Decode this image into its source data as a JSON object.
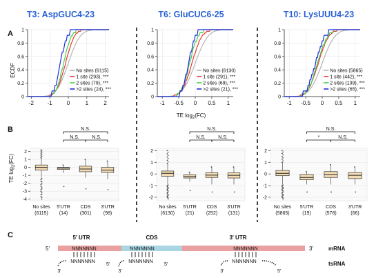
{
  "figure": {
    "panel_labels": {
      "a": "A",
      "b": "B",
      "c": "C"
    },
    "shared_labels": {
      "ecdf_ylabel": "ECDF",
      "te_ylabel_main": "TE log",
      "te_ylabel_sub": "2",
      "te_ylabel_tail": "(FC)",
      "xlabel_main": "TE log",
      "xlabel_sub": "2",
      "xlabel_tail": "(FC)"
    },
    "significance": {
      "ns": "N.S.",
      "star": "*"
    },
    "diagram": {
      "five_prime": "5'",
      "three_prime": "3'",
      "region_5utr": "5' UTR",
      "region_cds": "CDS",
      "region_3utr": "3' UTR",
      "seq_top": "NNNNNNN",
      "seq_bottom": "NNNNNNN",
      "mrna_label": "mRNA",
      "trna_label": "tsRNA"
    }
  },
  "chart_data": [
    {
      "type": "line",
      "subtype": "ecdf",
      "title": "T3: AspGUC4-23",
      "ylabel": "ECDF",
      "xlabel": "TE log2(FC)",
      "xlim": [
        -2.2,
        2.2
      ],
      "ylim": [
        0,
        1
      ],
      "xticks": [
        -2,
        -1,
        0,
        1,
        2
      ],
      "yticks": [
        0,
        0.2,
        0.4,
        0.6,
        0.8,
        1
      ],
      "legend": "bottom-right",
      "series": [
        {
          "name": "No sites (6115)",
          "color": "#b5b5b5",
          "mu": 0.0,
          "sd": 0.5
        },
        {
          "name": "1 site (293), ***",
          "color": "#e53935",
          "mu": -0.15,
          "sd": 0.38
        },
        {
          "name": "2 sites (79), ***",
          "color": "#43d143",
          "mu": -0.25,
          "sd": 0.33
        },
        {
          "name": ">2 sites (24), ***",
          "color": "#1e2be0",
          "mu": -0.42,
          "sd": 0.28
        }
      ]
    },
    {
      "type": "line",
      "subtype": "ecdf",
      "title": "T6: GluCUC6-25",
      "ylabel": "",
      "xlabel": "TE log2(FC)",
      "xlim": [
        -1.15,
        1.15
      ],
      "ylim": [
        0,
        1
      ],
      "xticks": [
        -1,
        -0.5,
        0,
        0.5,
        1
      ],
      "yticks": [
        0,
        0.2,
        0.4,
        0.6,
        0.8,
        1
      ],
      "legend": "bottom-right",
      "series": [
        {
          "name": "No sites (6130)",
          "color": "#b5b5b5",
          "mu": 0.0,
          "sd": 0.3
        },
        {
          "name": "1 site (291), ***",
          "color": "#e53935",
          "mu": -0.1,
          "sd": 0.24
        },
        {
          "name": "2 sites (69), ***",
          "color": "#43d143",
          "mu": -0.17,
          "sd": 0.2
        },
        {
          "name": ">2 sites (21), ***",
          "color": "#1e2be0",
          "mu": -0.2,
          "sd": 0.16
        }
      ]
    },
    {
      "type": "line",
      "subtype": "ecdf",
      "title": "T10: LysUUU4-23",
      "ylabel": "",
      "xlabel": "",
      "xlim": [
        -1.15,
        1.15
      ],
      "ylim": [
        0,
        1
      ],
      "xticks": [
        -1,
        -0.5,
        0,
        0.5,
        1
      ],
      "yticks": [
        0,
        0.2,
        0.4,
        0.6,
        0.8,
        1
      ],
      "legend": "bottom-right",
      "series": [
        {
          "name": "No sites (5865)",
          "color": "#b5b5b5",
          "mu": 0.0,
          "sd": 0.3
        },
        {
          "name": "1 site (442), ***",
          "color": "#e53935",
          "mu": -0.12,
          "sd": 0.25
        },
        {
          "name": "2 sites (139), ***",
          "color": "#43d143",
          "mu": -0.14,
          "sd": 0.24
        },
        {
          "name": ">2 sites (65), ***",
          "color": "#1e2be0",
          "mu": -0.2,
          "sd": 0.22
        }
      ]
    },
    {
      "type": "box",
      "ylabel": "TE log2(FC)",
      "ylim": [
        -4.2,
        2.4
      ],
      "yticks": [
        -4,
        -3,
        -2,
        -1,
        0,
        1,
        2
      ],
      "categories": [
        "No sites",
        "5'UTR",
        "CDS",
        "3'UTR"
      ],
      "counts": [
        "(6115)",
        "(14)",
        "(301)",
        "(98)"
      ],
      "boxes": [
        {
          "q1": -0.35,
          "med": 0.0,
          "q3": 0.3,
          "lo": -1.3,
          "hi": 1.2
        },
        {
          "q1": -0.25,
          "med": -0.1,
          "q3": 0.0,
          "lo": -0.7,
          "hi": 0.3
        },
        {
          "q1": -0.55,
          "med": -0.2,
          "q3": 0.15,
          "lo": -1.3,
          "hi": 1.0
        },
        {
          "q1": -0.65,
          "med": -0.35,
          "q3": 0.0,
          "lo": -1.5,
          "hi": 0.8
        }
      ],
      "brackets": [
        [
          "1",
          "3",
          "N.S."
        ],
        [
          "1",
          "2",
          "N.S."
        ],
        [
          "2",
          "3",
          "N.S."
        ]
      ]
    },
    {
      "type": "box",
      "ylabel": "",
      "ylim": [
        -2.3,
        2.2
      ],
      "yticks": [
        -2,
        -1,
        0,
        1,
        2
      ],
      "categories": [
        "No sites",
        "5'UTR",
        "CDS",
        "3'UTR"
      ],
      "counts": [
        "(6130)",
        "(21)",
        "(252)",
        "(131)"
      ],
      "boxes": [
        {
          "q1": -0.2,
          "med": 0.05,
          "q3": 0.25,
          "lo": -0.9,
          "hi": 0.9
        },
        {
          "q1": -0.35,
          "med": -0.22,
          "q3": -0.08,
          "lo": -0.65,
          "hi": 0.15
        },
        {
          "q1": -0.3,
          "med": -0.1,
          "q3": 0.1,
          "lo": -0.9,
          "hi": 0.6
        },
        {
          "q1": -0.35,
          "med": -0.12,
          "q3": 0.1,
          "lo": -0.9,
          "hi": 0.6
        }
      ],
      "brackets": [
        [
          "1",
          "3",
          "N.S."
        ],
        [
          "1",
          "2",
          "N.S."
        ],
        [
          "2",
          "3",
          "N.S."
        ]
      ]
    },
    {
      "type": "box",
      "ylabel": "",
      "ylim": [
        -2.3,
        2.2
      ],
      "yticks": [
        -2,
        -1,
        0,
        1,
        2
      ],
      "categories": [
        "No sites",
        "5'UTR",
        "CDS",
        "3'UTR"
      ],
      "counts": [
        "(5865)",
        "(19)",
        "(578)",
        "(66)"
      ],
      "boxes": [
        {
          "q1": -0.15,
          "med": 0.05,
          "q3": 0.3,
          "lo": -0.9,
          "hi": 1.0
        },
        {
          "q1": -0.5,
          "med": -0.3,
          "q3": -0.05,
          "lo": -0.9,
          "hi": 0.2
        },
        {
          "q1": -0.3,
          "med": -0.05,
          "q3": 0.2,
          "lo": -0.9,
          "hi": 0.8
        },
        {
          "q1": -0.4,
          "med": -0.12,
          "q3": 0.12,
          "lo": -0.9,
          "hi": 0.6
        }
      ],
      "brackets": [
        [
          "1",
          "3",
          "N.S."
        ],
        [
          "1",
          "2",
          "*"
        ],
        [
          "2",
          "3",
          "N.S."
        ]
      ]
    }
  ]
}
